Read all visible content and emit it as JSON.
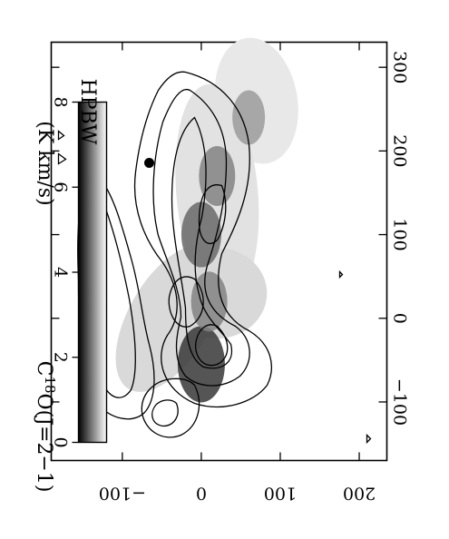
{
  "chart_data": {
    "type": "heatmap",
    "title": "C^18O(J=2-1)",
    "title_main": "C",
    "title_sup": "18",
    "title_rest": "O(J=2−1)",
    "colorbar_label": "(K km/s)",
    "beam_label": "HPBW",
    "colormap": "grayscale",
    "colorbar_range": [
      0,
      8
    ],
    "colorbar_ticks": [
      "8",
      "6",
      "4",
      "2",
      "0"
    ],
    "x_ticks": [
      "300",
      "200",
      "100",
      "0",
      "−100"
    ],
    "x_tick_values": [
      300,
      200,
      100,
      0,
      -100
    ],
    "y_ticks": [
      "200",
      "100",
      "0",
      "−100"
    ],
    "y_tick_values": [
      200,
      100,
      0,
      -100
    ],
    "xlim": [
      330,
      -170
    ],
    "ylim": [
      -190,
      235
    ],
    "contour_levels": [
      1,
      2,
      3,
      4,
      5,
      6
    ],
    "orientation": "rotated 90° clockwise",
    "features": [
      {
        "x": -55,
        "y": 0,
        "peak": 8
      },
      {
        "x": 100,
        "y": 0,
        "peak": 6
      },
      {
        "x": 170,
        "y": 20,
        "peak": 5
      },
      {
        "x": 20,
        "y": 10,
        "peak": 5
      },
      {
        "x": 240,
        "y": 60,
        "peak": 4
      }
    ]
  }
}
